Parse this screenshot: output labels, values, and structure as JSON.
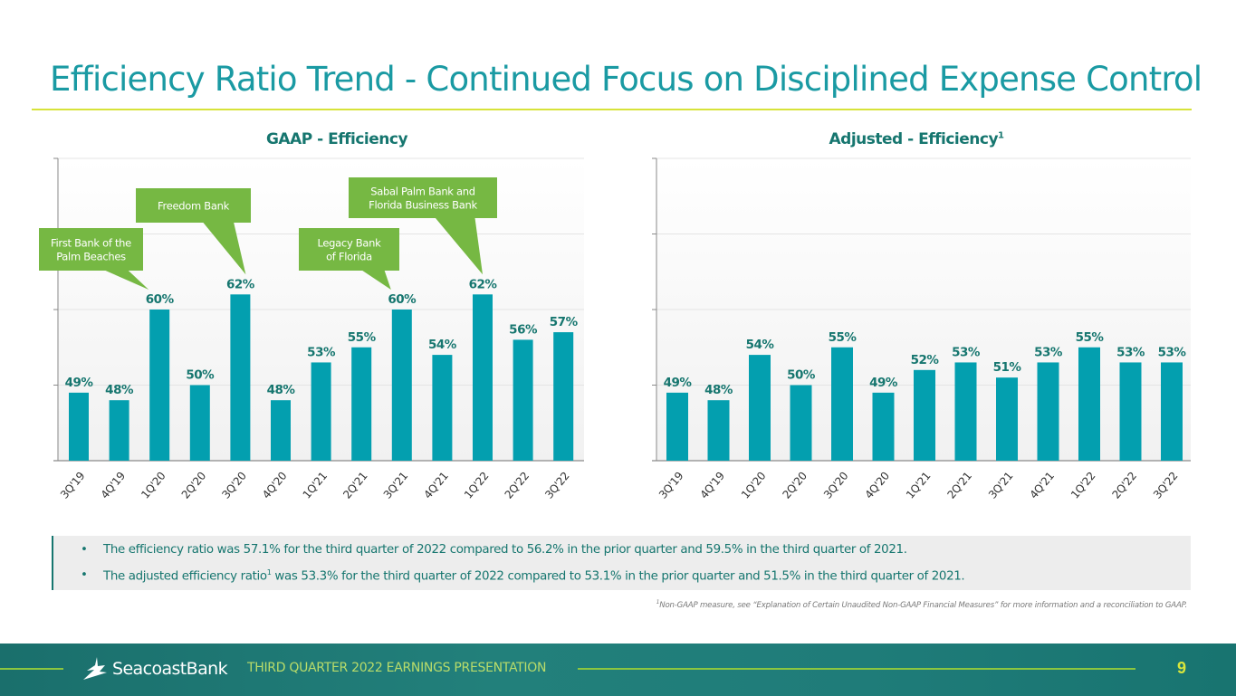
{
  "page": {
    "title": "Efficiency Ratio Trend - Continued Focus on Disciplined Expense Control",
    "colors": {
      "title": "#1a9aa3",
      "bar": "#039faf",
      "label": "#16766f",
      "callout": "#76b843",
      "rule": "#d7e33a",
      "footer": "#1f7c79"
    }
  },
  "chart_data": [
    {
      "type": "bar",
      "title": "GAAP - Efficiency",
      "categories": [
        "3Q'19",
        "4Q'19",
        "1Q'20",
        "2Q'20",
        "3Q'20",
        "4Q'20",
        "1Q'21",
        "2Q'21",
        "3Q'21",
        "4Q'21",
        "1Q'22",
        "2Q'22",
        "3Q'22"
      ],
      "values": [
        49,
        48,
        60,
        50,
        62,
        48,
        53,
        55,
        60,
        54,
        62,
        56,
        57
      ],
      "data_labels": [
        "49%",
        "48%",
        "60%",
        "50%",
        "62%",
        "48%",
        "53%",
        "55%",
        "60%",
        "54%",
        "62%",
        "56%",
        "57%"
      ],
      "ylim": [
        40,
        80
      ],
      "yticks": [
        40,
        50,
        60,
        70,
        80
      ],
      "ytick_labels_visible": false,
      "grid": true,
      "xlabel": "",
      "ylabel": "",
      "annotations": [
        {
          "text": [
            "First Bank of the",
            "Palm Beaches"
          ],
          "points_to": "1Q'20"
        },
        {
          "text": [
            "Freedom Bank"
          ],
          "points_to": "3Q'20"
        },
        {
          "text": [
            "Legacy Bank",
            "of Florida"
          ],
          "points_to": "3Q'21"
        },
        {
          "text": [
            "Sabal Palm Bank and",
            "Florida Business Bank"
          ],
          "points_to": "1Q'22"
        }
      ]
    },
    {
      "type": "bar",
      "title": "Adjusted - Efficiency",
      "title_superscript": "1",
      "categories": [
        "3Q'19",
        "4Q'19",
        "1Q'20",
        "2Q'20",
        "3Q'20",
        "4Q'20",
        "1Q'21",
        "2Q'21",
        "3Q'21",
        "4Q'21",
        "1Q'22",
        "2Q'22",
        "3Q'22"
      ],
      "values": [
        49,
        48,
        54,
        50,
        55,
        49,
        52,
        53,
        51,
        53,
        55,
        53,
        53
      ],
      "data_labels": [
        "49%",
        "48%",
        "54%",
        "50%",
        "55%",
        "49%",
        "52%",
        "53%",
        "51%",
        "53%",
        "55%",
        "53%",
        "53%"
      ],
      "ylim": [
        40,
        80
      ],
      "yticks": [
        40,
        50,
        60,
        70,
        80
      ],
      "ytick_labels_visible": false,
      "grid": true,
      "xlabel": "",
      "ylabel": ""
    }
  ],
  "bullets": {
    "marker": "•",
    "items": [
      {
        "before": "The efficiency ratio was 57.1% for the third quarter of 2022 compared to 56.2% in the prior quarter and 59.5% in the third quarter of 2021.",
        "sup": "",
        "after": ""
      },
      {
        "before": "The adjusted efficiency ratio",
        "sup": "1",
        "after": " was 53.3% for the third quarter of 2022 compared to 53.1% in the prior quarter and 51.5% in the third quarter of 2021."
      }
    ]
  },
  "footnote": {
    "sup": "1",
    "text": "Non-GAAP measure, see “Explanation of Certain Unaudited Non-GAAP Financial Measures” for more information and a reconciliation to GAAP."
  },
  "footer": {
    "logo_icon": "sail-icon",
    "logo_text": "SeacoastBank",
    "subtitle": "THIRD QUARTER 2022 EARNINGS PRESENTATION",
    "page_number": "9"
  }
}
